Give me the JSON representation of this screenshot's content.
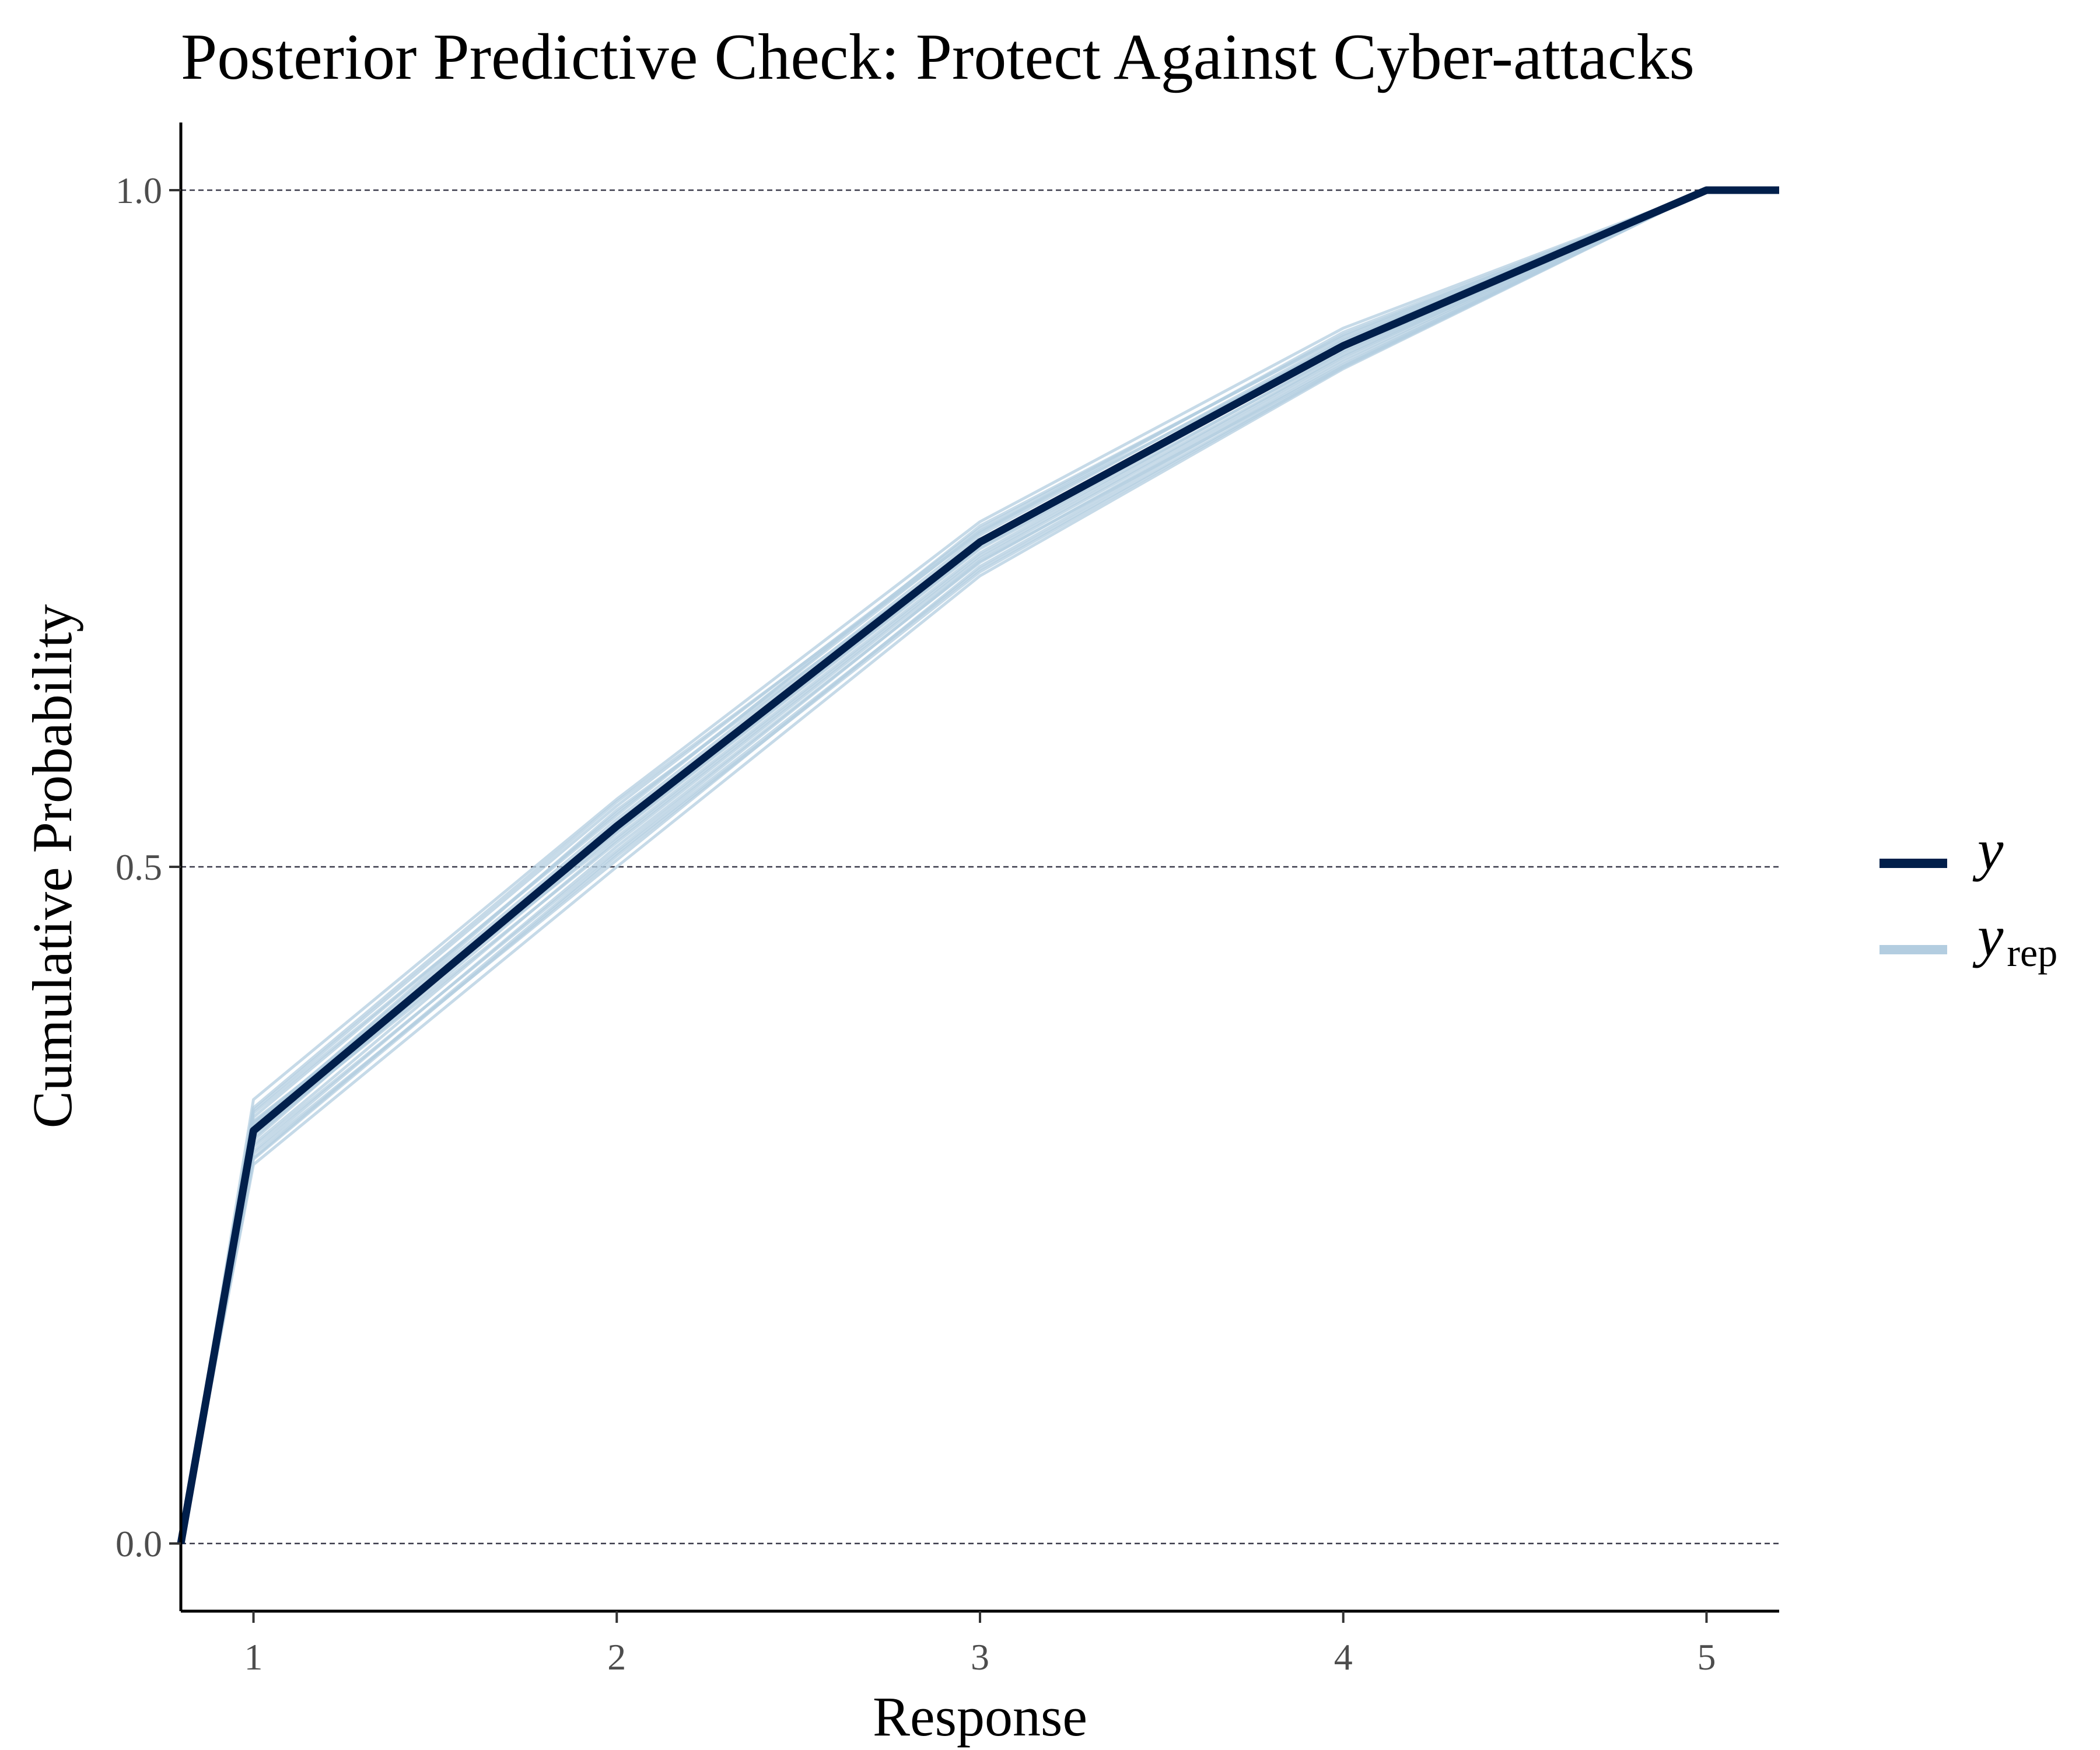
{
  "chart_data": {
    "type": "line",
    "title": "Posterior Predictive Check: Protect Against Cyber-attacks",
    "xlabel": "Response",
    "ylabel": "Cumulative Probability",
    "xlim": [
      0.8,
      5.2
    ],
    "ylim": [
      -0.05,
      1.05
    ],
    "xticks": [
      1,
      2,
      3,
      4,
      5
    ],
    "yticks": [
      0.0,
      0.5,
      1.0
    ],
    "ytick_labels": [
      "0.0",
      "0.5",
      "1.0"
    ],
    "grid": "dashed horizontal at y ticks",
    "legend_position": "right",
    "colors": {
      "y": "#011f4b",
      "yrep": "#b3cde0"
    },
    "series": [
      {
        "name": "y",
        "x": [
          0.8,
          1,
          2,
          3,
          4,
          5,
          5.2
        ],
        "values": [
          0.0,
          0.305,
          0.53,
          0.74,
          0.885,
          1.0,
          1.0
        ]
      }
    ],
    "yrep_draws": [
      [
        0.0,
        0.3,
        0.525,
        0.735,
        0.88,
        1.0,
        1.0
      ],
      [
        0.0,
        0.31,
        0.535,
        0.745,
        0.89,
        1.0,
        1.0
      ],
      [
        0.0,
        0.285,
        0.51,
        0.72,
        0.87,
        1.0,
        1.0
      ],
      [
        0.0,
        0.32,
        0.545,
        0.75,
        0.893,
        1.0,
        1.0
      ],
      [
        0.0,
        0.295,
        0.52,
        0.73,
        0.878,
        1.0,
        1.0
      ],
      [
        0.0,
        0.328,
        0.55,
        0.755,
        0.898,
        1.0,
        1.0
      ],
      [
        0.0,
        0.28,
        0.5,
        0.715,
        0.868,
        1.0,
        1.0
      ],
      [
        0.0,
        0.315,
        0.54,
        0.748,
        0.887,
        1.0,
        1.0
      ],
      [
        0.0,
        0.29,
        0.515,
        0.725,
        0.875,
        1.0,
        1.0
      ],
      [
        0.0,
        0.305,
        0.528,
        0.738,
        0.883,
        1.0,
        1.0
      ],
      [
        0.0,
        0.298,
        0.532,
        0.742,
        0.886,
        1.0,
        1.0
      ],
      [
        0.0,
        0.312,
        0.522,
        0.732,
        0.881,
        1.0,
        1.0
      ],
      [
        0.0,
        0.288,
        0.505,
        0.722,
        0.873,
        1.0,
        1.0
      ],
      [
        0.0,
        0.318,
        0.538,
        0.752,
        0.892,
        1.0,
        1.0
      ],
      [
        0.0,
        0.302,
        0.518,
        0.728,
        0.877,
        1.0,
        1.0
      ],
      [
        0.0,
        0.308,
        0.542,
        0.74,
        0.889,
        1.0,
        1.0
      ],
      [
        0.0,
        0.293,
        0.512,
        0.726,
        0.871,
        1.0,
        1.0
      ],
      [
        0.0,
        0.322,
        0.548,
        0.747,
        0.895,
        1.0,
        1.0
      ],
      [
        0.0,
        0.284,
        0.508,
        0.718,
        0.869,
        1.0,
        1.0
      ],
      [
        0.0,
        0.311,
        0.526,
        0.736,
        0.884,
        1.0,
        1.0
      ]
    ],
    "legend": [
      {
        "key": "y",
        "label": "y",
        "sub": ""
      },
      {
        "key": "yrep",
        "label": "y",
        "sub": "rep"
      }
    ]
  }
}
